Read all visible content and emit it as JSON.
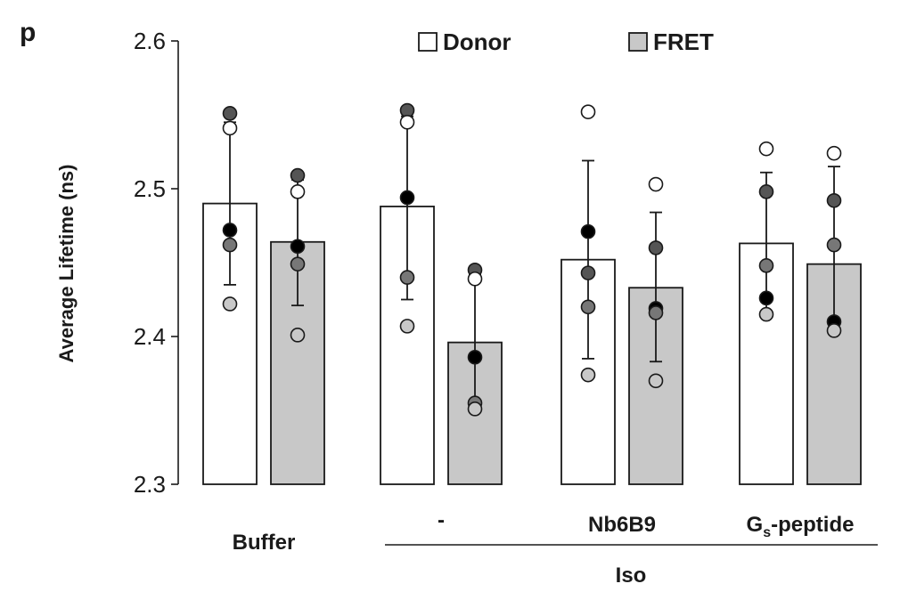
{
  "panel_label": "p",
  "chart_data": {
    "type": "bar",
    "ylabel": "Average Lifetime (ns)",
    "ylim": [
      2.3,
      2.6
    ],
    "yticks": [
      "2.3",
      "2.4",
      "2.5",
      "2.6"
    ],
    "legend_placement": "top",
    "legend": [
      {
        "name": "Donor",
        "color": "#ffffff"
      },
      {
        "name": "FRET",
        "color": "#c8c8c8"
      }
    ],
    "categories": [
      "Buffer",
      "-",
      "Nb6B9",
      "G_s-peptide"
    ],
    "group_label": "Iso",
    "series": [
      {
        "name": "Donor",
        "color": "#ffffff",
        "values": [
          2.49,
          2.488,
          2.452,
          2.463
        ],
        "error": [
          [
            2.435,
            2.545
          ],
          [
            2.425,
            2.549
          ],
          [
            2.385,
            2.519
          ],
          [
            2.416,
            2.511
          ]
        ],
        "points": [
          [
            {
              "v": 2.551,
              "fill": "#555555"
            },
            {
              "v": 2.541,
              "fill": "#ffffff"
            },
            {
              "v": 2.472,
              "fill": "#000000"
            },
            {
              "v": 2.462,
              "fill": "#777777"
            },
            {
              "v": 2.422,
              "fill": "#c8c8c8"
            }
          ],
          [
            {
              "v": 2.553,
              "fill": "#555555"
            },
            {
              "v": 2.545,
              "fill": "#ffffff"
            },
            {
              "v": 2.494,
              "fill": "#000000"
            },
            {
              "v": 2.44,
              "fill": "#777777"
            },
            {
              "v": 2.407,
              "fill": "#c8c8c8"
            }
          ],
          [
            {
              "v": 2.552,
              "fill": "#ffffff"
            },
            {
              "v": 2.471,
              "fill": "#000000"
            },
            {
              "v": 2.443,
              "fill": "#555555"
            },
            {
              "v": 2.42,
              "fill": "#777777"
            },
            {
              "v": 2.374,
              "fill": "#c8c8c8"
            }
          ],
          [
            {
              "v": 2.527,
              "fill": "#ffffff"
            },
            {
              "v": 2.498,
              "fill": "#555555"
            },
            {
              "v": 2.448,
              "fill": "#777777"
            },
            {
              "v": 2.426,
              "fill": "#000000"
            },
            {
              "v": 2.415,
              "fill": "#c8c8c8"
            }
          ]
        ]
      },
      {
        "name": "FRET",
        "color": "#c8c8c8",
        "values": [
          2.464,
          2.396,
          2.433,
          2.449
        ],
        "error": [
          [
            2.421,
            2.506
          ],
          [
            2.356,
            2.442
          ],
          [
            2.383,
            2.484
          ],
          [
            2.406,
            2.515
          ]
        ],
        "points": [
          [
            {
              "v": 2.509,
              "fill": "#555555"
            },
            {
              "v": 2.498,
              "fill": "#ffffff"
            },
            {
              "v": 2.461,
              "fill": "#000000"
            },
            {
              "v": 2.449,
              "fill": "#777777"
            },
            {
              "v": 2.401,
              "fill": "#c8c8c8"
            }
          ],
          [
            {
              "v": 2.445,
              "fill": "#555555"
            },
            {
              "v": 2.439,
              "fill": "#ffffff"
            },
            {
              "v": 2.386,
              "fill": "#000000"
            },
            {
              "v": 2.355,
              "fill": "#777777"
            },
            {
              "v": 2.351,
              "fill": "#c8c8c8"
            }
          ],
          [
            {
              "v": 2.503,
              "fill": "#ffffff"
            },
            {
              "v": 2.46,
              "fill": "#555555"
            },
            {
              "v": 2.419,
              "fill": "#000000"
            },
            {
              "v": 2.416,
              "fill": "#777777"
            },
            {
              "v": 2.37,
              "fill": "#c8c8c8"
            }
          ],
          [
            {
              "v": 2.524,
              "fill": "#ffffff"
            },
            {
              "v": 2.492,
              "fill": "#555555"
            },
            {
              "v": 2.462,
              "fill": "#777777"
            },
            {
              "v": 2.41,
              "fill": "#000000"
            },
            {
              "v": 2.404,
              "fill": "#c8c8c8"
            }
          ]
        ]
      }
    ]
  }
}
